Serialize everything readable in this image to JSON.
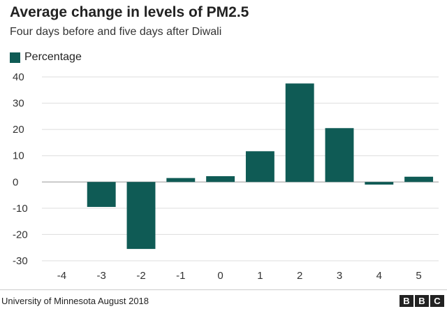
{
  "header": {
    "title": "Average change in levels of PM2.5",
    "subtitle": "Four days before and five days after Diwali"
  },
  "legend": {
    "label": "Percentage",
    "color": "#0f5b55"
  },
  "footer": {
    "source": "University of Minnesota August 2018",
    "logo_letters": [
      "B",
      "B",
      "C"
    ]
  },
  "chart_data": {
    "type": "bar",
    "title": "Average change in levels of PM2.5",
    "subtitle": "Four days before and five days after Diwali",
    "xlabel": "",
    "ylabel": "",
    "categories": [
      "-4",
      "-3",
      "-2",
      "-1",
      "0",
      "1",
      "2",
      "3",
      "4",
      "5"
    ],
    "series": [
      {
        "name": "Percentage",
        "values": [
          0,
          -9.5,
          -25.5,
          1.5,
          2.2,
          11.7,
          37.5,
          20.5,
          -1.0,
          2.0
        ]
      }
    ],
    "ylim": [
      -30,
      40
    ],
    "yticks": [
      40,
      30,
      20,
      10,
      0,
      -10,
      -20,
      -30
    ],
    "grid": true,
    "legend_position": "top-left"
  }
}
